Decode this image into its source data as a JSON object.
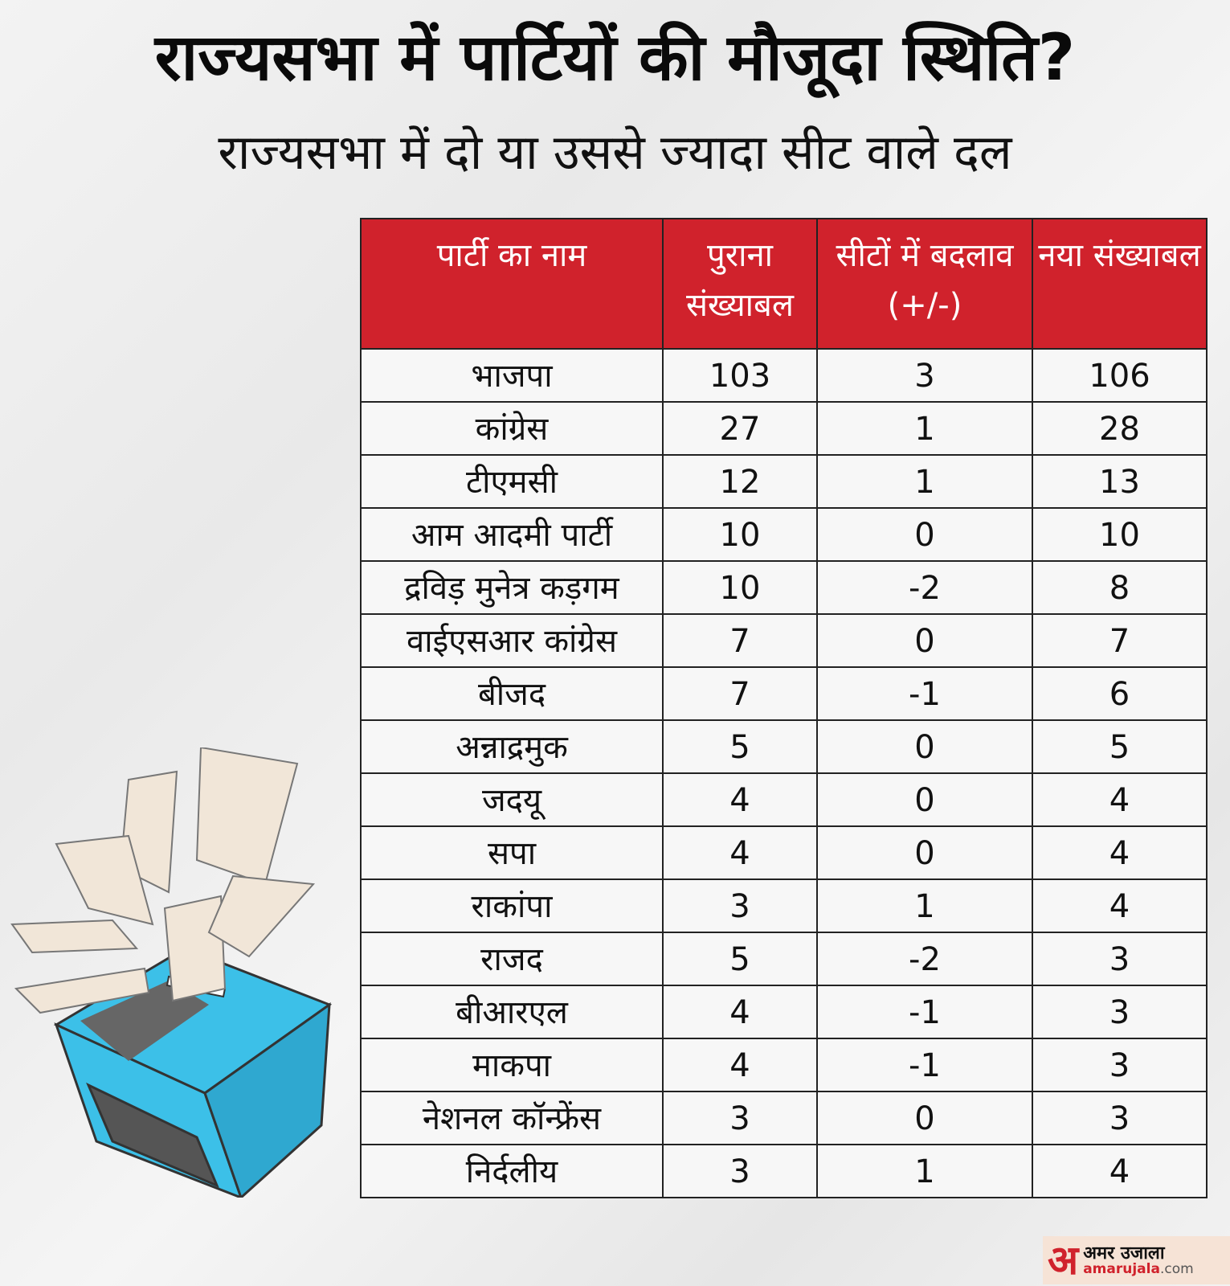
{
  "title": "राज्यसभा में पार्टियों की मौजूदा स्थिति?",
  "subtitle": "राज्यसभा में दो या उससे ज्यादा सीट वाले दल",
  "colors": {
    "header": "#d0222c",
    "ballot_box": "#3cc0e8"
  },
  "table": {
    "headers": [
      "पार्टी का नाम",
      "पुराना संख्याबल",
      "सीटों में बदलाव (+/-)",
      "नया संख्याबल"
    ],
    "rows": [
      [
        "भाजपा",
        "103",
        "3",
        "106"
      ],
      [
        "कांग्रेस",
        "27",
        "1",
        "28"
      ],
      [
        "टीएमसी",
        "12",
        "1",
        "13"
      ],
      [
        "आम आदमी पार्टी",
        "10",
        "0",
        "10"
      ],
      [
        "द्रविड़ मुनेत्र कड़गम",
        "10",
        "-2",
        "8"
      ],
      [
        "वाईएसआर कांग्रेस",
        "7",
        "0",
        "7"
      ],
      [
        "बीजद",
        "7",
        "-1",
        "6"
      ],
      [
        "अन्नाद्रमुक",
        "5",
        "0",
        "5"
      ],
      [
        "जदयू",
        "4",
        "0",
        "4"
      ],
      [
        "सपा",
        "4",
        "0",
        "4"
      ],
      [
        "राकांपा",
        "3",
        "1",
        "4"
      ],
      [
        "राजद",
        "5",
        "-2",
        "3"
      ],
      [
        "बीआरएल",
        "4",
        "-1",
        "3"
      ],
      [
        "माकपा",
        "4",
        "-1",
        "3"
      ],
      [
        "नेशनल कॉन्फ्रेंस",
        "3",
        "0",
        "3"
      ],
      [
        "निर्दलीय",
        "3",
        "1",
        "4"
      ]
    ]
  },
  "logo": {
    "mark": "अ",
    "hindi": "अमर उजाला",
    "domain_name": "amarujala",
    "domain_tld": ".com"
  }
}
